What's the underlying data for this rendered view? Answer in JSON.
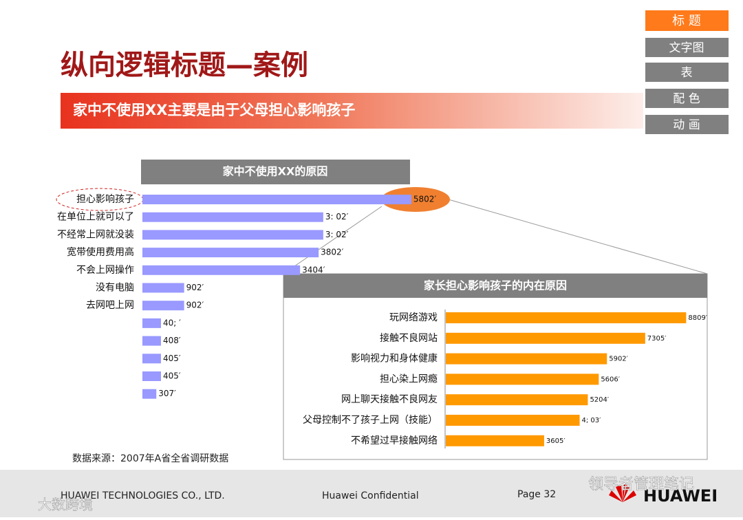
{
  "header": {
    "title": "纵向逻辑标题—案例",
    "banner": "家中不使用XX主要是由于父母担心影响孩子"
  },
  "nav": [
    "标 题",
    "文字图",
    "表",
    "配 色",
    "动 画"
  ],
  "chart_data": [
    {
      "type": "bar",
      "orientation": "horizontal",
      "title": "家中不使用XX的原因",
      "color": "#9999ff",
      "categories": [
        "担心影响孩子",
        "在单位上就可以了",
        "不经常上网就没装",
        "宽带使用费用高",
        "不会上网操作",
        "没有电脑",
        "去网吧上网",
        null,
        null,
        null,
        null,
        null
      ],
      "values": [
        58.0,
        39.0,
        39.0,
        38.0,
        34.0,
        9.0,
        9.0,
        4.0,
        4.0,
        4.0,
        4.0,
        3.0
      ],
      "value_labels": [
        "5802′",
        "3: 02′",
        "3: 02′",
        "3802′",
        "3404′",
        "902′",
        "902′",
        "40; ′",
        "408′",
        "405′",
        "405′",
        "307′"
      ]
    },
    {
      "type": "bar",
      "orientation": "horizontal",
      "title": "家长担心影响孩子的内在原因",
      "color": "#ff9900",
      "categories": [
        "玩网络游戏",
        "接触不良网站",
        "影响视力和身体健康",
        "担心染上网瘾",
        "网上聊天接触不良网友",
        "父母控制不了孩子上网（技能）",
        "不希望过早接触网络"
      ],
      "values": [
        88.0,
        73.0,
        59.0,
        56.0,
        52.0,
        49.0,
        36.0
      ],
      "value_labels": [
        "8809′",
        "7305′",
        "5902′",
        "5606′",
        "5204′",
        "4; 03′",
        "3605′"
      ]
    }
  ],
  "source": "数据来源：2007年A省全省调研数据",
  "footer": {
    "company": "HUAWEI TECHNOLOGIES CO., LTD.",
    "confidential": "Huawei Confidential",
    "page": "Page 32",
    "logo": "HUAWEI"
  },
  "watermarks": [
    "领导者管理笔记",
    "大数跨境"
  ]
}
